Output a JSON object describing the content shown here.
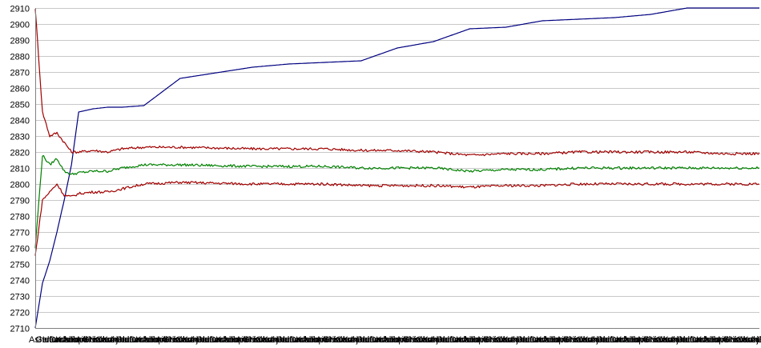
{
  "chart_data": {
    "type": "line",
    "title": "",
    "xlabel": "",
    "ylabel": "",
    "ylim": [
      2710,
      2910
    ],
    "ytick_step": 10,
    "grid": "horizontal",
    "legend": "none",
    "x_tick_labels_note": "dense overlapping category labels along the x axis",
    "x_tick_labels": [
      "Ashmen",
      "Gelfand",
      "Ivanchuk",
      "Carlsen",
      "Kramnik",
      "Anand",
      "Topalov",
      "Aronian",
      "Grischuk",
      "Nakamura",
      "Caruana",
      "Karjakin"
    ],
    "x": [
      0,
      0.01,
      0.02,
      0.03,
      0.04,
      0.05,
      0.06,
      0.08,
      0.1,
      0.12,
      0.15,
      0.2,
      0.3,
      0.35,
      0.4,
      0.45,
      0.5,
      0.55,
      0.6,
      0.65,
      0.7,
      0.75,
      0.8,
      0.85,
      0.9,
      0.95,
      1.0
    ],
    "series": [
      {
        "color": "#000080",
        "values": [
          2710,
          2738,
          2752,
          2770,
          2790,
          2812,
          2845,
          2847,
          2848,
          2848,
          2849,
          2866,
          2873,
          2875,
          2876,
          2877,
          2885,
          2889,
          2897,
          2898,
          2902,
          2903,
          2904,
          2906,
          2910,
          2910,
          2910
        ]
      },
      {
        "color": "#a00000",
        "values": [
          2910,
          2845,
          2830,
          2832,
          2826,
          2820,
          2820,
          2821,
          2820,
          2822,
          2823,
          2823,
          2822,
          2822,
          2822,
          2821,
          2821,
          2820,
          2818,
          2819,
          2819,
          2820,
          2820,
          2820,
          2820,
          2819,
          2819
        ]
      },
      {
        "color": "#008000",
        "values": [
          2760,
          2818,
          2812,
          2816,
          2808,
          2806,
          2807,
          2808,
          2808,
          2810,
          2812,
          2812,
          2811,
          2811,
          2811,
          2810,
          2810,
          2810,
          2808,
          2809,
          2809,
          2810,
          2810,
          2810,
          2810,
          2810,
          2810
        ]
      },
      {
        "color": "#a00000",
        "values": [
          2755,
          2790,
          2795,
          2800,
          2793,
          2792,
          2794,
          2795,
          2795,
          2797,
          2800,
          2801,
          2800,
          2800,
          2800,
          2799,
          2799,
          2799,
          2798,
          2799,
          2799,
          2800,
          2800,
          2800,
          2800,
          2800,
          2800
        ]
      }
    ]
  }
}
